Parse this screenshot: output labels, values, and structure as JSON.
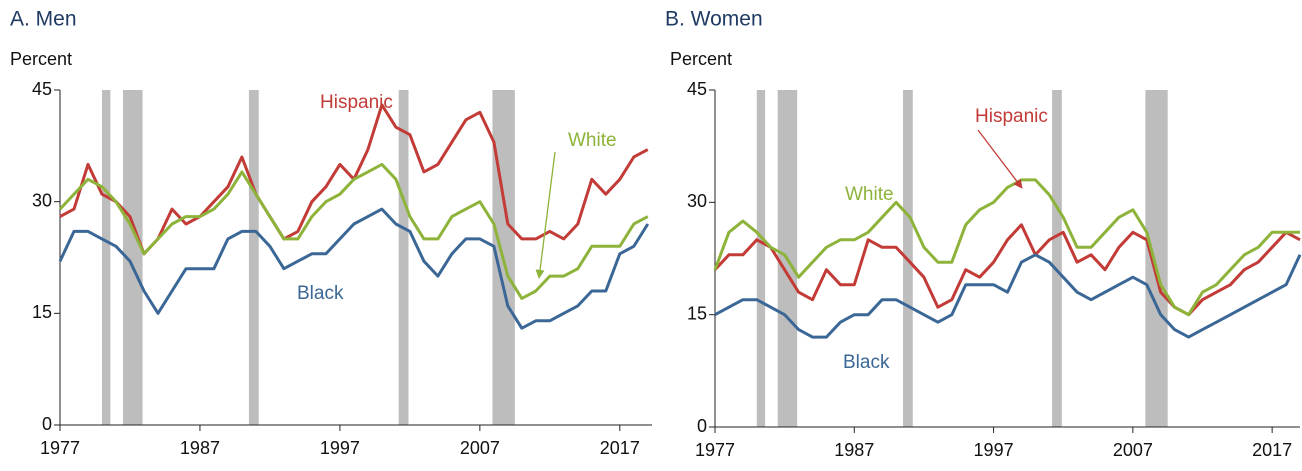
{
  "chart_data": [
    {
      "type": "line",
      "title": "A. Men",
      "y_label": "Percent",
      "x": [
        1977,
        1978,
        1979,
        1980,
        1981,
        1982,
        1983,
        1984,
        1985,
        1986,
        1987,
        1988,
        1989,
        1990,
        1991,
        1992,
        1993,
        1994,
        1995,
        1996,
        1997,
        1998,
        1999,
        2000,
        2001,
        2002,
        2003,
        2004,
        2005,
        2006,
        2007,
        2008,
        2009,
        2010,
        2011,
        2012,
        2013,
        2014,
        2015,
        2016,
        2017,
        2018,
        2019
      ],
      "xlim": [
        1977,
        2019.3
      ],
      "xticks": [
        1977,
        1987,
        1997,
        2007,
        2017
      ],
      "ylim": [
        0,
        45
      ],
      "yticks": [
        0,
        15,
        30,
        45
      ],
      "recessions": [
        [
          1980,
          1980.6
        ],
        [
          1981.5,
          1982.9
        ],
        [
          1990.5,
          1991.2
        ],
        [
          2001.2,
          2001.9
        ],
        [
          2007.9,
          2009.5
        ]
      ],
      "series": [
        {
          "name": "Hispanic",
          "color": "#c23b37",
          "values": [
            28,
            29,
            35,
            31,
            30,
            28,
            23,
            25,
            29,
            27,
            28,
            30,
            32,
            36,
            31,
            28,
            25,
            26,
            30,
            32,
            35,
            33,
            37,
            43,
            40,
            39,
            34,
            35,
            38,
            41,
            42,
            38,
            27,
            25,
            25,
            26,
            25,
            27,
            33,
            31,
            33,
            36,
            37
          ]
        },
        {
          "name": "White",
          "color": "#8db33a",
          "values": [
            29,
            31,
            33,
            32,
            30,
            27,
            23,
            25,
            27,
            28,
            28,
            29,
            31,
            34,
            31,
            28,
            25,
            25,
            28,
            30,
            31,
            33,
            34,
            35,
            33,
            28,
            25,
            25,
            28,
            29,
            30,
            27,
            20,
            17,
            18,
            20,
            20,
            21,
            24,
            24,
            24,
            27,
            28
          ]
        },
        {
          "name": "Black",
          "color": "#3b6796",
          "values": [
            22,
            26,
            26,
            25,
            24,
            22,
            18,
            15,
            18,
            21,
            21,
            21,
            25,
            26,
            26,
            24,
            21,
            22,
            23,
            23,
            25,
            27,
            28,
            29,
            27,
            26,
            22,
            20,
            23,
            25,
            25,
            24,
            16,
            13,
            14,
            14,
            15,
            16,
            18,
            18,
            23,
            24,
            27
          ]
        }
      ]
    },
    {
      "type": "line",
      "title": "B. Women",
      "y_label": "Percent",
      "x": [
        1977,
        1978,
        1979,
        1980,
        1981,
        1982,
        1983,
        1984,
        1985,
        1986,
        1987,
        1988,
        1989,
        1990,
        1991,
        1992,
        1993,
        1994,
        1995,
        1996,
        1997,
        1998,
        1999,
        2000,
        2001,
        2002,
        2003,
        2004,
        2005,
        2006,
        2007,
        2008,
        2009,
        2010,
        2011,
        2012,
        2013,
        2014,
        2015,
        2016,
        2017,
        2018,
        2019
      ],
      "xlim": [
        1977,
        2019
      ],
      "xticks": [
        1977,
        1987,
        1997,
        2007,
        2017
      ],
      "ylim": [
        0,
        45
      ],
      "yticks": [
        0,
        15,
        30,
        45
      ],
      "recessions": [
        [
          1980,
          1980.6
        ],
        [
          1981.5,
          1982.9
        ],
        [
          1990.5,
          1991.2
        ],
        [
          2001.2,
          2001.9
        ],
        [
          2007.9,
          2009.5
        ]
      ],
      "series": [
        {
          "name": "Hispanic",
          "color": "#c23b37",
          "values": [
            21,
            23,
            23,
            25,
            24,
            21,
            18,
            17,
            21,
            19,
            19,
            25,
            24,
            24,
            22,
            20,
            16,
            17,
            21,
            20,
            22,
            25,
            27,
            23,
            25,
            26,
            22,
            23,
            21,
            24,
            26,
            25,
            18,
            16,
            15,
            17,
            18,
            19,
            21,
            22,
            24,
            26,
            25
          ]
        },
        {
          "name": "White",
          "color": "#8db33a",
          "values": [
            21,
            26,
            27.5,
            26,
            24,
            23,
            20,
            22,
            24,
            25,
            25,
            26,
            28,
            30,
            28,
            24,
            22,
            22,
            27,
            29,
            30,
            32,
            33,
            33,
            31,
            28,
            24,
            24,
            26,
            28,
            29,
            26,
            19,
            16,
            15,
            18,
            19,
            21,
            23,
            24,
            26,
            26,
            26
          ]
        },
        {
          "name": "Black",
          "color": "#3b6796",
          "values": [
            15,
            16,
            17,
            17,
            16,
            15,
            13,
            12,
            12,
            14,
            15,
            15,
            17,
            17,
            16,
            15,
            14,
            15,
            19,
            19,
            19,
            18,
            22,
            23,
            22,
            20,
            18,
            17,
            18,
            19,
            20,
            19,
            15,
            13,
            12,
            13,
            14,
            15,
            16,
            17,
            18,
            19,
            23
          ]
        }
      ]
    }
  ]
}
